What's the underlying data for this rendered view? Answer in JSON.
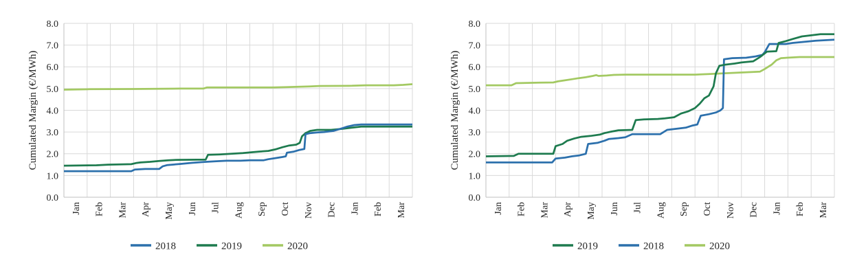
{
  "page": {
    "background": "#ffffff",
    "text_color": "#262626",
    "grid_color": "#d9d9d9",
    "axis_color": "#bfbfbf"
  },
  "chart_data": [
    {
      "type": "line",
      "title": "",
      "xlabel": "",
      "ylabel": "Cumulated Margin (€/MWh)",
      "ylim": [
        0,
        8
      ],
      "ytick_step": 1,
      "ytick_labels": [
        "0.0",
        "1.0",
        "2.0",
        "3.0",
        "4.0",
        "5.0",
        "6.0",
        "7.0",
        "8.0"
      ],
      "x_categories": [
        "Jan",
        "Feb",
        "Mar",
        "Apr",
        "May",
        "Jun",
        "Jul",
        "Aug",
        "Sep",
        "Oct",
        "Nov",
        "Dec",
        "Jan",
        "Feb",
        "Mar"
      ],
      "x_months_span": 15,
      "grid": true,
      "legend_position": "bottom",
      "series": [
        {
          "name": "2018",
          "color": "#2C70AC",
          "points": [
            [
              0,
              1.2
            ],
            [
              2.9,
              1.2
            ],
            [
              3.05,
              1.27
            ],
            [
              3.5,
              1.3
            ],
            [
              4.1,
              1.3
            ],
            [
              4.25,
              1.42
            ],
            [
              4.45,
              1.48
            ],
            [
              5,
              1.53
            ],
            [
              5.5,
              1.58
            ],
            [
              6,
              1.62
            ],
            [
              6.5,
              1.65
            ],
            [
              7,
              1.68
            ],
            [
              7.6,
              1.68
            ],
            [
              8,
              1.7
            ],
            [
              8.6,
              1.7
            ],
            [
              8.8,
              1.75
            ],
            [
              9.1,
              1.8
            ],
            [
              9.4,
              1.85
            ],
            [
              9.55,
              1.88
            ],
            [
              9.6,
              2.05
            ],
            [
              9.9,
              2.1
            ],
            [
              10.15,
              2.18
            ],
            [
              10.35,
              2.22
            ],
            [
              10.4,
              2.9
            ],
            [
              10.6,
              2.95
            ],
            [
              10.9,
              2.98
            ],
            [
              11.2,
              3.0
            ],
            [
              11.6,
              3.05
            ],
            [
              12,
              3.18
            ],
            [
              12.2,
              3.25
            ],
            [
              12.5,
              3.32
            ],
            [
              12.8,
              3.35
            ],
            [
              15,
              3.35
            ]
          ]
        },
        {
          "name": "2019",
          "color": "#1E7B4F",
          "points": [
            [
              0,
              1.45
            ],
            [
              1.4,
              1.47
            ],
            [
              1.9,
              1.5
            ],
            [
              2.9,
              1.52
            ],
            [
              3.1,
              1.57
            ],
            [
              3.3,
              1.6
            ],
            [
              3.7,
              1.63
            ],
            [
              4.1,
              1.67
            ],
            [
              4.5,
              1.7
            ],
            [
              4.9,
              1.72
            ],
            [
              6.1,
              1.73
            ],
            [
              6.2,
              1.95
            ],
            [
              6.7,
              1.97
            ],
            [
              7.2,
              2.0
            ],
            [
              7.7,
              2.03
            ],
            [
              8.1,
              2.07
            ],
            [
              8.4,
              2.1
            ],
            [
              8.8,
              2.13
            ],
            [
              9.1,
              2.2
            ],
            [
              9.4,
              2.3
            ],
            [
              9.7,
              2.38
            ],
            [
              10,
              2.42
            ],
            [
              10.15,
              2.5
            ],
            [
              10.25,
              2.8
            ],
            [
              10.4,
              2.95
            ],
            [
              10.6,
              3.05
            ],
            [
              10.9,
              3.1
            ],
            [
              11.5,
              3.1
            ],
            [
              12,
              3.15
            ],
            [
              12.4,
              3.2
            ],
            [
              12.8,
              3.25
            ],
            [
              15,
              3.25
            ]
          ]
        },
        {
          "name": "2020",
          "color": "#A3C962",
          "points": [
            [
              0,
              4.95
            ],
            [
              1.1,
              4.97
            ],
            [
              3,
              4.98
            ],
            [
              5,
              5.0
            ],
            [
              6,
              5.0
            ],
            [
              6.15,
              5.05
            ],
            [
              9,
              5.05
            ],
            [
              9.6,
              5.07
            ],
            [
              10.1,
              5.08
            ],
            [
              10.6,
              5.1
            ],
            [
              11,
              5.12
            ],
            [
              12.4,
              5.13
            ],
            [
              13,
              5.15
            ],
            [
              14.2,
              5.15
            ],
            [
              14.6,
              5.17
            ],
            [
              15,
              5.2
            ]
          ]
        }
      ]
    },
    {
      "type": "line",
      "title": "",
      "xlabel": "",
      "ylabel": "Cumulated Margin (€/MWh)",
      "ylim": [
        0,
        8
      ],
      "ytick_step": 1,
      "ytick_labels": [
        "0.0",
        "1.0",
        "2.0",
        "3.0",
        "4.0",
        "5.0",
        "6.0",
        "7.0",
        "8.0"
      ],
      "x_categories": [
        "Jan",
        "Feb",
        "Mar",
        "Apr",
        "May",
        "Jun",
        "Jul",
        "Aug",
        "Sep",
        "Oct",
        "Nov",
        "Dec",
        "Jan",
        "Feb",
        "Mar"
      ],
      "x_months_span": 15,
      "grid": true,
      "legend_position": "bottom",
      "series": [
        {
          "name": "2019",
          "color": "#1E7B4F",
          "points": [
            [
              0,
              1.88
            ],
            [
              1.2,
              1.9
            ],
            [
              1.4,
              2.0
            ],
            [
              2.9,
              2.0
            ],
            [
              3.0,
              2.35
            ],
            [
              3.3,
              2.45
            ],
            [
              3.5,
              2.6
            ],
            [
              3.8,
              2.7
            ],
            [
              4.1,
              2.78
            ],
            [
              4.5,
              2.82
            ],
            [
              4.9,
              2.88
            ],
            [
              5.1,
              2.95
            ],
            [
              5.4,
              3.02
            ],
            [
              5.7,
              3.08
            ],
            [
              6.3,
              3.1
            ],
            [
              6.45,
              3.55
            ],
            [
              6.8,
              3.58
            ],
            [
              7.4,
              3.6
            ],
            [
              7.7,
              3.63
            ],
            [
              8.1,
              3.68
            ],
            [
              8.4,
              3.85
            ],
            [
              8.7,
              3.95
            ],
            [
              9,
              4.1
            ],
            [
              9.2,
              4.3
            ],
            [
              9.4,
              4.55
            ],
            [
              9.6,
              4.68
            ],
            [
              9.8,
              5.1
            ],
            [
              9.9,
              5.7
            ],
            [
              10.05,
              6.05
            ],
            [
              10.3,
              6.1
            ],
            [
              10.7,
              6.15
            ],
            [
              11,
              6.2
            ],
            [
              11.5,
              6.25
            ],
            [
              11.8,
              6.45
            ],
            [
              12.1,
              6.7
            ],
            [
              12.5,
              6.72
            ],
            [
              12.6,
              7.1
            ],
            [
              12.9,
              7.18
            ],
            [
              13.2,
              7.28
            ],
            [
              13.6,
              7.4
            ],
            [
              14,
              7.45
            ],
            [
              14.4,
              7.5
            ],
            [
              15,
              7.5
            ]
          ]
        },
        {
          "name": "2018",
          "color": "#2C70AC",
          "points": [
            [
              0,
              1.6
            ],
            [
              2.85,
              1.6
            ],
            [
              3.0,
              1.78
            ],
            [
              3.4,
              1.82
            ],
            [
              3.7,
              1.88
            ],
            [
              4.0,
              1.92
            ],
            [
              4.3,
              2.0
            ],
            [
              4.4,
              2.45
            ],
            [
              4.8,
              2.5
            ],
            [
              5.1,
              2.6
            ],
            [
              5.3,
              2.68
            ],
            [
              5.7,
              2.72
            ],
            [
              6.0,
              2.76
            ],
            [
              6.3,
              2.9
            ],
            [
              7.5,
              2.9
            ],
            [
              7.8,
              3.1
            ],
            [
              8.2,
              3.15
            ],
            [
              8.6,
              3.2
            ],
            [
              8.9,
              3.3
            ],
            [
              9.1,
              3.35
            ],
            [
              9.25,
              3.75
            ],
            [
              9.6,
              3.82
            ],
            [
              9.9,
              3.9
            ],
            [
              10.1,
              4.0
            ],
            [
              10.2,
              4.1
            ],
            [
              10.25,
              6.35
            ],
            [
              10.6,
              6.4
            ],
            [
              11.2,
              6.42
            ],
            [
              11.6,
              6.48
            ],
            [
              11.9,
              6.55
            ],
            [
              12.0,
              6.67
            ],
            [
              12.2,
              7.05
            ],
            [
              12.9,
              7.05
            ],
            [
              13.2,
              7.1
            ],
            [
              13.7,
              7.15
            ],
            [
              14.2,
              7.2
            ],
            [
              15,
              7.25
            ]
          ]
        },
        {
          "name": "2020",
          "color": "#A3C962",
          "points": [
            [
              0,
              5.15
            ],
            [
              1.1,
              5.15
            ],
            [
              1.3,
              5.25
            ],
            [
              2.3,
              5.27
            ],
            [
              2.9,
              5.28
            ],
            [
              3.1,
              5.33
            ],
            [
              3.4,
              5.38
            ],
            [
              3.7,
              5.43
            ],
            [
              4.0,
              5.48
            ],
            [
              4.3,
              5.52
            ],
            [
              4.6,
              5.58
            ],
            [
              4.75,
              5.62
            ],
            [
              4.85,
              5.58
            ],
            [
              5.2,
              5.6
            ],
            [
              5.5,
              5.63
            ],
            [
              6,
              5.64
            ],
            [
              9,
              5.64
            ],
            [
              9.6,
              5.67
            ],
            [
              10.2,
              5.7
            ],
            [
              11,
              5.74
            ],
            [
              11.8,
              5.78
            ],
            [
              12.0,
              5.9
            ],
            [
              12.3,
              6.1
            ],
            [
              12.5,
              6.3
            ],
            [
              12.7,
              6.4
            ],
            [
              13.1,
              6.43
            ],
            [
              13.5,
              6.45
            ],
            [
              15,
              6.45
            ]
          ]
        }
      ]
    }
  ]
}
